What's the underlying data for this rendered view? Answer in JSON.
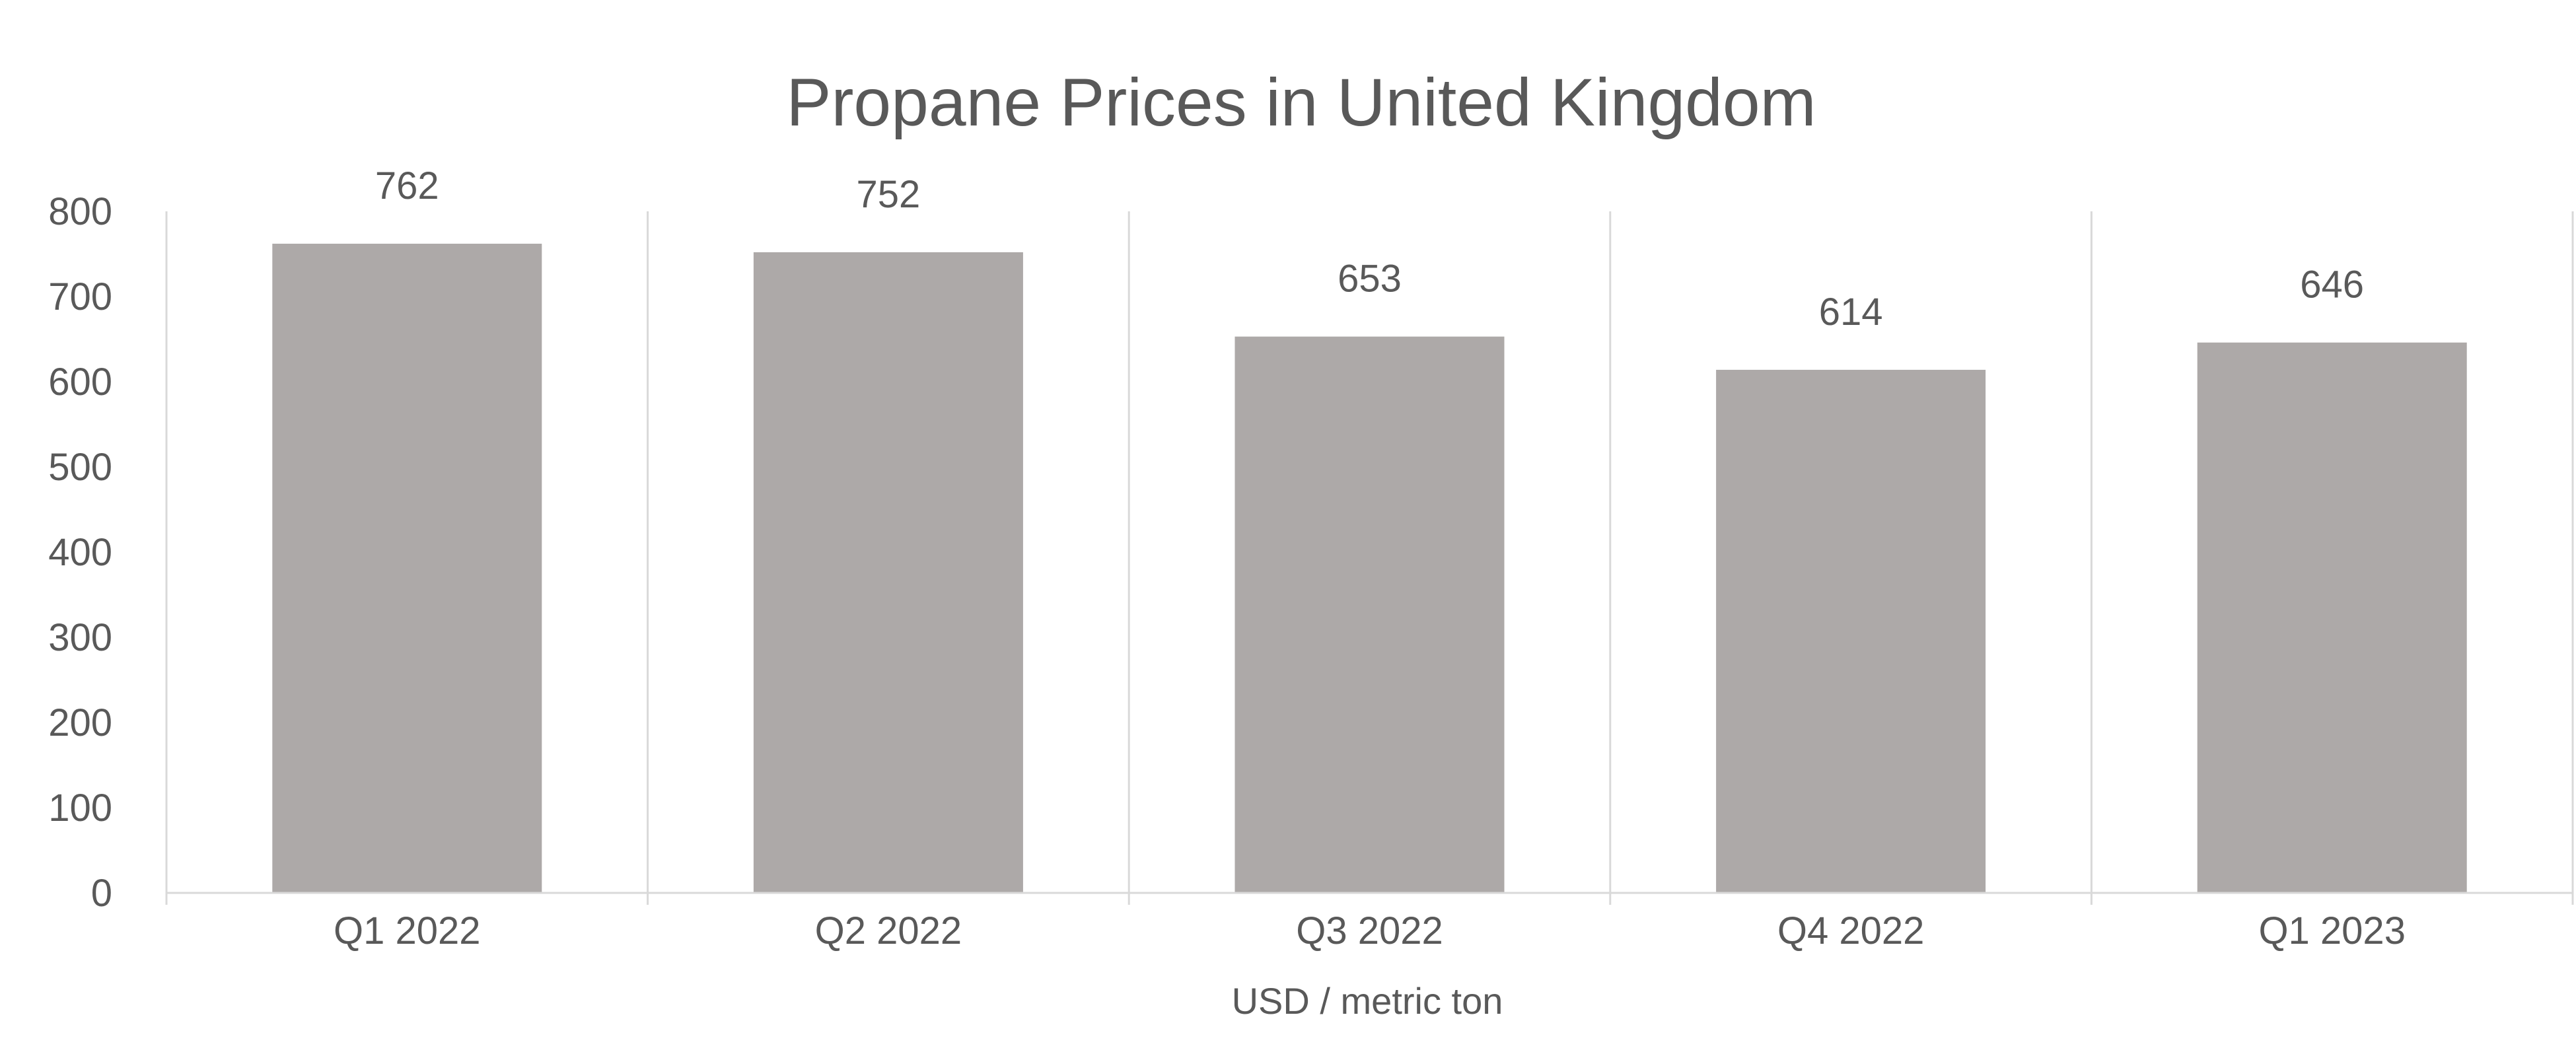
{
  "colors": {
    "bar": "#ADA9A8",
    "text": "#595959",
    "grid": "#D9D9D9"
  },
  "chart_data": {
    "type": "bar",
    "title": "Propane Prices in United Kingdom",
    "xlabel": "USD / metric ton",
    "ylabel": "",
    "categories": [
      "Q1 2022",
      "Q2 2022",
      "Q3 2022",
      "Q4 2022",
      "Q1 2023"
    ],
    "series": [
      {
        "values": [
          762,
          752,
          653,
          614,
          646
        ]
      }
    ],
    "ylim": [
      0,
      800
    ],
    "yticks": [
      0,
      100,
      200,
      300,
      400,
      500,
      600,
      700,
      800
    ],
    "data_labels": true,
    "grid": "vertical-category-separators",
    "legend": "none"
  }
}
